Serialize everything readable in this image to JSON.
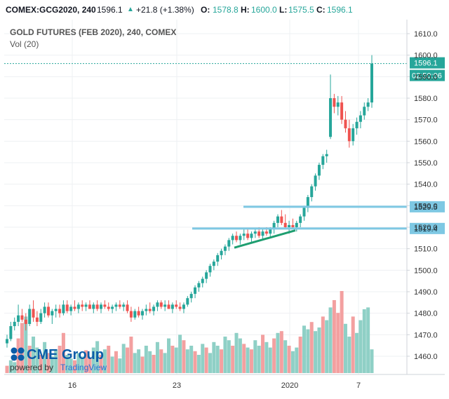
{
  "header": {
    "symbol": "COMEX:GCG2020, 240",
    "last": "1596.1",
    "change": "+21.8 (+1.38%)",
    "o_label": "O:",
    "o_val": "1578.8",
    "h_label": "H:",
    "h_val": "1600.0",
    "l_label": "L:",
    "l_val": "1575.5",
    "c_label": "C:",
    "c_val": "1596.1",
    "title": "GOLD FUTURES (FEB 2020), 240, COMEX",
    "vol_label": "Vol (20)",
    "arrow_icon": "triangle-up-icon"
  },
  "logo": {
    "brand": "CME Group",
    "powered": "powered by",
    "tv": "TradingView"
  },
  "colors": {
    "up": "#26a69a",
    "down": "#ef5350",
    "up_vol": "#8fd0c6",
    "down_vol": "#f3a0a0",
    "hline": "#7ec8e3",
    "trend": "#1e9e70",
    "price_line": "#26a69a",
    "grid": "#eef0f3"
  },
  "chart_data": {
    "type": "candlestick",
    "yaxis_ticks": [
      "1610.0",
      "1600.0",
      "1590.0",
      "1580.0",
      "1570.0",
      "1560.0",
      "1550.0",
      "1540.0",
      "1530.0",
      "1520.0",
      "1510.0",
      "1500.0",
      "1490.0",
      "1480.0",
      "1470.0",
      "1460.0"
    ],
    "ylim": [
      1455,
      1613
    ],
    "xaxis_ticks": [
      "16",
      "23",
      "2020",
      "7"
    ],
    "last_price_label": "1596.1",
    "countdown_label": "02:50:06",
    "level_labels": [
      "1529.5",
      "1519.4"
    ],
    "levels": [
      1529.5,
      1519.4
    ],
    "last_price": 1596.1,
    "trendline": [
      [
        1510.5,
        1518.5
      ]
    ],
    "candles": [
      [
        1466,
        1470,
        1464,
        1468
      ],
      [
        1468,
        1476,
        1467,
        1474
      ],
      [
        1474,
        1478,
        1472,
        1476
      ],
      [
        1476,
        1484,
        1474,
        1479
      ],
      [
        1479,
        1482,
        1476,
        1477
      ],
      [
        1477,
        1480,
        1472,
        1475
      ],
      [
        1475,
        1484,
        1474,
        1482
      ],
      [
        1482,
        1486,
        1476,
        1478
      ],
      [
        1478,
        1481,
        1474,
        1476
      ],
      [
        1476,
        1482,
        1475,
        1480
      ],
      [
        1480,
        1485,
        1478,
        1483
      ],
      [
        1483,
        1485,
        1478,
        1479
      ],
      [
        1479,
        1482,
        1475,
        1481
      ],
      [
        1481,
        1484,
        1478,
        1482
      ],
      [
        1482,
        1484,
        1478,
        1480
      ],
      [
        1480,
        1486,
        1479,
        1484
      ],
      [
        1484,
        1486,
        1480,
        1481
      ],
      [
        1481,
        1484,
        1479,
        1483
      ],
      [
        1483,
        1486,
        1481,
        1482
      ],
      [
        1482,
        1485,
        1480,
        1484
      ],
      [
        1484,
        1486,
        1481,
        1483
      ],
      [
        1483,
        1485,
        1481,
        1484
      ],
      [
        1484,
        1486,
        1482,
        1482
      ],
      [
        1482,
        1485,
        1480,
        1484
      ],
      [
        1484,
        1486,
        1481,
        1482
      ],
      [
        1482,
        1485,
        1480,
        1484
      ],
      [
        1484,
        1486,
        1482,
        1483
      ],
      [
        1483,
        1485,
        1481,
        1482
      ],
      [
        1482,
        1484,
        1480,
        1483
      ],
      [
        1483,
        1485,
        1481,
        1484
      ],
      [
        1484,
        1486,
        1482,
        1483
      ],
      [
        1483,
        1485,
        1481,
        1484
      ],
      [
        1484,
        1486,
        1480,
        1481
      ],
      [
        1481,
        1483,
        1476,
        1478
      ],
      [
        1478,
        1482,
        1477,
        1481
      ],
      [
        1481,
        1483,
        1478,
        1479
      ],
      [
        1479,
        1482,
        1477,
        1481
      ],
      [
        1481,
        1484,
        1479,
        1482
      ],
      [
        1482,
        1485,
        1480,
        1481
      ],
      [
        1481,
        1484,
        1479,
        1483
      ],
      [
        1483,
        1486,
        1481,
        1485
      ],
      [
        1485,
        1486,
        1482,
        1483
      ],
      [
        1483,
        1486,
        1481,
        1484
      ],
      [
        1484,
        1486,
        1482,
        1482
      ],
      [
        1482,
        1485,
        1480,
        1484
      ],
      [
        1484,
        1486,
        1482,
        1483
      ],
      [
        1483,
        1485,
        1481,
        1482
      ],
      [
        1482,
        1485,
        1480,
        1484
      ],
      [
        1484,
        1488,
        1483,
        1487
      ],
      [
        1487,
        1490,
        1485,
        1489
      ],
      [
        1489,
        1493,
        1487,
        1492
      ],
      [
        1492,
        1495,
        1490,
        1494
      ],
      [
        1494,
        1497,
        1492,
        1496
      ],
      [
        1496,
        1500,
        1494,
        1499
      ],
      [
        1499,
        1503,
        1497,
        1502
      ],
      [
        1502,
        1505,
        1500,
        1504
      ],
      [
        1504,
        1508,
        1502,
        1507
      ],
      [
        1507,
        1510,
        1505,
        1509
      ],
      [
        1509,
        1512,
        1507,
        1511
      ],
      [
        1511,
        1515,
        1509,
        1514
      ],
      [
        1514,
        1517,
        1512,
        1516
      ],
      [
        1516,
        1518,
        1513,
        1514
      ],
      [
        1514,
        1517,
        1512,
        1516
      ],
      [
        1516,
        1519,
        1514,
        1517
      ],
      [
        1517,
        1519,
        1514,
        1515
      ],
      [
        1515,
        1518,
        1513,
        1517
      ],
      [
        1517,
        1519,
        1515,
        1518
      ],
      [
        1518,
        1520,
        1515,
        1516
      ],
      [
        1516,
        1519,
        1514,
        1518
      ],
      [
        1518,
        1520,
        1516,
        1517
      ],
      [
        1517,
        1520,
        1515,
        1519
      ],
      [
        1519,
        1523,
        1517,
        1522
      ],
      [
        1522,
        1526,
        1520,
        1525
      ],
      [
        1525,
        1528,
        1521,
        1522
      ],
      [
        1522,
        1526,
        1519,
        1520
      ],
      [
        1520,
        1523,
        1517,
        1521
      ],
      [
        1521,
        1524,
        1519,
        1520
      ],
      [
        1520,
        1523,
        1518,
        1522
      ],
      [
        1522,
        1526,
        1520,
        1525
      ],
      [
        1525,
        1530,
        1523,
        1529
      ],
      [
        1529,
        1535,
        1527,
        1534
      ],
      [
        1534,
        1540,
        1532,
        1539
      ],
      [
        1539,
        1545,
        1537,
        1544
      ],
      [
        1544,
        1550,
        1542,
        1549
      ],
      [
        1549,
        1554,
        1547,
        1553
      ],
      [
        1553,
        1556,
        1550,
        1554
      ],
      [
        1562,
        1591,
        1561,
        1580
      ],
      [
        1580,
        1582,
        1573,
        1576
      ],
      [
        1576,
        1581,
        1572,
        1578
      ],
      [
        1578,
        1581,
        1568,
        1570
      ],
      [
        1570,
        1574,
        1564,
        1566
      ],
      [
        1566,
        1570,
        1557,
        1560
      ],
      [
        1560,
        1568,
        1558,
        1566
      ],
      [
        1566,
        1571,
        1563,
        1569
      ],
      [
        1569,
        1574,
        1566,
        1572
      ],
      [
        1572,
        1578,
        1570,
        1576
      ],
      [
        1576,
        1580,
        1574,
        1578
      ],
      [
        1578,
        1600,
        1575.5,
        1596.1
      ]
    ],
    "volumes": [
      [
        8,
        0
      ],
      [
        14,
        1
      ],
      [
        12,
        1
      ],
      [
        38,
        0
      ],
      [
        55,
        0
      ],
      [
        62,
        1
      ],
      [
        30,
        0
      ],
      [
        40,
        1
      ],
      [
        28,
        1
      ],
      [
        20,
        0
      ],
      [
        34,
        1
      ],
      [
        22,
        0
      ],
      [
        18,
        1
      ],
      [
        26,
        1
      ],
      [
        30,
        0
      ],
      [
        44,
        0
      ],
      [
        20,
        1
      ],
      [
        16,
        1
      ],
      [
        14,
        0
      ],
      [
        22,
        1
      ],
      [
        18,
        1
      ],
      [
        25,
        0
      ],
      [
        16,
        0
      ],
      [
        28,
        1
      ],
      [
        35,
        1
      ],
      [
        20,
        0
      ],
      [
        26,
        1
      ],
      [
        30,
        0
      ],
      [
        18,
        1
      ],
      [
        24,
        0
      ],
      [
        16,
        1
      ],
      [
        32,
        1
      ],
      [
        28,
        0
      ],
      [
        40,
        0
      ],
      [
        22,
        1
      ],
      [
        26,
        1
      ],
      [
        18,
        0
      ],
      [
        30,
        1
      ],
      [
        24,
        1
      ],
      [
        20,
        0
      ],
      [
        34,
        1
      ],
      [
        26,
        0
      ],
      [
        22,
        1
      ],
      [
        38,
        1
      ],
      [
        30,
        0
      ],
      [
        28,
        1
      ],
      [
        42,
        1
      ],
      [
        36,
        0
      ],
      [
        26,
        1
      ],
      [
        30,
        1
      ],
      [
        24,
        0
      ],
      [
        20,
        1
      ],
      [
        32,
        1
      ],
      [
        28,
        0
      ],
      [
        22,
        1
      ],
      [
        34,
        1
      ],
      [
        30,
        1
      ],
      [
        26,
        0
      ],
      [
        40,
        1
      ],
      [
        36,
        1
      ],
      [
        30,
        0
      ],
      [
        44,
        1
      ],
      [
        38,
        1
      ],
      [
        32,
        0
      ],
      [
        28,
        1
      ],
      [
        26,
        0
      ],
      [
        36,
        1
      ],
      [
        30,
        1
      ],
      [
        42,
        0
      ],
      [
        34,
        1
      ],
      [
        28,
        1
      ],
      [
        38,
        0
      ],
      [
        44,
        1
      ],
      [
        46,
        0
      ],
      [
        36,
        1
      ],
      [
        30,
        0
      ],
      [
        24,
        1
      ],
      [
        28,
        1
      ],
      [
        40,
        0
      ],
      [
        52,
        1
      ],
      [
        48,
        1
      ],
      [
        56,
        0
      ],
      [
        46,
        1
      ],
      [
        50,
        1
      ],
      [
        62,
        0
      ],
      [
        58,
        1
      ],
      [
        72,
        1
      ],
      [
        80,
        0
      ],
      [
        66,
        0
      ],
      [
        90,
        0
      ],
      [
        54,
        1
      ],
      [
        40,
        1
      ],
      [
        62,
        0
      ],
      [
        44,
        1
      ],
      [
        58,
        1
      ],
      [
        70,
        1
      ],
      [
        72,
        1
      ],
      [
        26,
        1
      ]
    ]
  }
}
